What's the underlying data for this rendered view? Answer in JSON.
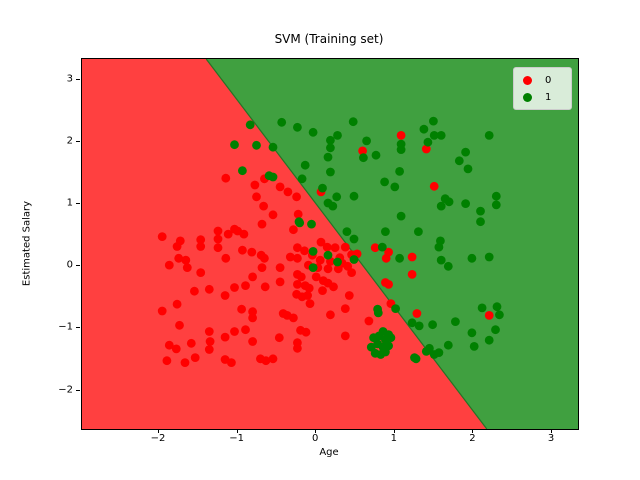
{
  "title": "SVM (Training set)",
  "xlabel": "Age",
  "ylabel": "Estimated Salary",
  "legend": {
    "position": "upper right",
    "items": [
      {
        "label": "0",
        "color": "#ff0000"
      },
      {
        "label": "1",
        "color": "#008000"
      }
    ]
  },
  "chart_data": {
    "type": "scatter",
    "title": "SVM (Training set)",
    "xlabel": "Age",
    "ylabel": "Estimated Salary",
    "xlim": [
      -2.98,
      3.33
    ],
    "ylim": [
      -2.62,
      3.34
    ],
    "x_ticks": [
      -2,
      -1,
      0,
      1,
      2,
      3
    ],
    "y_ticks": [
      3,
      2,
      1,
      0,
      -1,
      -2
    ],
    "grid": false,
    "legend_position": "upper right",
    "regions": [
      {
        "class": "0",
        "side": "lower-left",
        "color": "#ff4040"
      },
      {
        "class": "1",
        "side": "upper-right",
        "color": "#40a040"
      }
    ],
    "decision_boundary": {
      "type": "linear",
      "points_data_coords": [
        [
          -1.4,
          3.34
        ],
        [
          2.17,
          -2.62
        ]
      ],
      "edge_color": "#267326"
    },
    "series": [
      {
        "name": "0",
        "color": "#ff0000",
        "points": [
          [
            -1.96,
            0.48
          ],
          [
            -1.73,
            0.41
          ],
          [
            -1.47,
            0.43
          ],
          [
            -1.25,
            0.57
          ],
          [
            -1.25,
            0.44
          ],
          [
            -1.12,
            0.52
          ],
          [
            -1.04,
            0.6
          ],
          [
            -1.0,
            0.57
          ],
          [
            -0.92,
            0.52
          ],
          [
            -1.15,
            1.42
          ],
          [
            -0.78,
            1.31
          ],
          [
            -0.66,
            1.41
          ],
          [
            -0.46,
            1.28
          ],
          [
            -0.36,
            1.2
          ],
          [
            -0.25,
            1.12
          ],
          [
            -0.76,
            1.12
          ],
          [
            -0.67,
            0.97
          ],
          [
            -0.55,
            0.83
          ],
          [
            -0.23,
            0.84
          ],
          [
            -0.29,
            0.59
          ],
          [
            -0.69,
            0.68
          ],
          [
            0.59,
            1.86
          ],
          [
            1.08,
            2.11
          ],
          [
            1.4,
            1.89
          ],
          [
            1.5,
            1.29
          ],
          [
            0.06,
            1.2
          ],
          [
            -1.77,
            0.32
          ],
          [
            -1.47,
            0.32
          ],
          [
            -1.25,
            0.3
          ],
          [
            -1.87,
            0.02
          ],
          [
            -1.75,
            0.13
          ],
          [
            -1.66,
            0.1
          ],
          [
            -1.64,
            -0.02
          ],
          [
            -1.47,
            -0.1
          ],
          [
            -1.15,
            0.13
          ],
          [
            -0.94,
            0.26
          ],
          [
            -0.9,
            -0.31
          ],
          [
            -1.55,
            -0.4
          ],
          [
            -1.36,
            -0.37
          ],
          [
            -1.16,
            -0.47
          ],
          [
            -1.04,
            -0.34
          ],
          [
            -1.77,
            -0.61
          ],
          [
            -1.96,
            -0.72
          ],
          [
            -1.74,
            -0.95
          ],
          [
            -0.95,
            -0.69
          ],
          [
            -1.36,
            -1.05
          ],
          [
            -1.16,
            -1.14
          ],
          [
            -1.04,
            -1.05
          ],
          [
            -0.9,
            -1.02
          ],
          [
            -1.87,
            -1.27
          ],
          [
            -1.78,
            -1.33
          ],
          [
            -1.59,
            -1.24
          ],
          [
            -1.54,
            -1.47
          ],
          [
            -1.67,
            -1.55
          ],
          [
            -1.35,
            -1.21
          ],
          [
            -1.36,
            -1.34
          ],
          [
            -1.16,
            -1.5
          ],
          [
            -1.08,
            -1.55
          ],
          [
            -1.9,
            -1.52
          ],
          [
            -0.82,
            0.23
          ],
          [
            -0.7,
            0.18
          ],
          [
            -0.66,
            0.13
          ],
          [
            -0.33,
            0.15
          ],
          [
            -0.24,
            0.3
          ],
          [
            -0.24,
            0.13
          ],
          [
            0.14,
            0.31
          ],
          [
            0.24,
            0.3
          ],
          [
            0.37,
            0.31
          ],
          [
            0.45,
            0.19
          ],
          [
            -0.46,
            -0.02
          ],
          [
            -0.69,
            -0.02
          ],
          [
            -0.81,
            -0.17
          ],
          [
            -0.65,
            -0.33
          ],
          [
            -0.46,
            -0.25
          ],
          [
            -0.24,
            -0.13
          ],
          [
            -0.19,
            -0.17
          ],
          [
            -0.24,
            -0.29
          ],
          [
            -0.14,
            -0.31
          ],
          [
            -0.09,
            -0.35
          ],
          [
            -0.25,
            -0.45
          ],
          [
            -0.18,
            -0.49
          ],
          [
            -0.11,
            -0.47
          ],
          [
            0.0,
            -0.17
          ],
          [
            0.09,
            -0.23
          ],
          [
            0.15,
            -0.27
          ],
          [
            0.22,
            -0.33
          ],
          [
            0.08,
            -0.39
          ],
          [
            -0.08,
            -0.6
          ],
          [
            0.42,
            -0.47
          ],
          [
            0.37,
            -0.68
          ],
          [
            0.67,
            -0.88
          ],
          [
            0.18,
            -0.78
          ],
          [
            -0.42,
            -0.76
          ],
          [
            -0.37,
            -0.79
          ],
          [
            -0.29,
            -0.83
          ],
          [
            -0.81,
            -0.73
          ],
          [
            -0.81,
            -0.83
          ],
          [
            -0.47,
            -1.15
          ],
          [
            -0.2,
            -1.03
          ],
          [
            -0.13,
            -1.06
          ],
          [
            0.37,
            -1.12
          ],
          [
            -0.24,
            -1.23
          ],
          [
            -0.24,
            -1.32
          ],
          [
            -0.81,
            -1.21
          ],
          [
            -0.71,
            -1.49
          ],
          [
            -0.64,
            -1.52
          ],
          [
            -0.55,
            -1.49
          ],
          [
            0.75,
            0.3
          ],
          [
            0.89,
            0.13
          ],
          [
            0.92,
            0.23
          ],
          [
            0.88,
            -0.26
          ],
          [
            0.92,
            -0.29
          ],
          [
            0.95,
            -0.6
          ],
          [
            1.22,
            0.15
          ],
          [
            1.22,
            -0.13
          ],
          [
            1.28,
            -0.76
          ],
          [
            2.2,
            -0.79
          ],
          [
            -0.15,
            0.25
          ],
          [
            -0.05,
            0.18
          ],
          [
            0.05,
            0.1
          ],
          [
            0.18,
            0.08
          ],
          [
            0.3,
            0.14
          ],
          [
            -0.1,
            0.02
          ],
          [
            0.02,
            -0.02
          ],
          [
            0.15,
            -0.04
          ],
          [
            0.28,
            -0.04
          ],
          [
            0.33,
            0.05
          ],
          [
            0.4,
            0.0
          ],
          [
            0.45,
            -0.1
          ],
          [
            0.52,
            0.2
          ],
          [
            0.06,
            0.39
          ]
        ]
      },
      {
        "name": "1",
        "color": "#008000",
        "points": [
          [
            -1.04,
            1.96
          ],
          [
            -0.94,
            1.54
          ],
          [
            -0.84,
            2.28
          ],
          [
            -0.44,
            2.32
          ],
          [
            -0.24,
            2.24
          ],
          [
            -0.04,
            2.16
          ],
          [
            0.27,
            2.11
          ],
          [
            0.18,
            2.03
          ],
          [
            0.47,
            2.33
          ],
          [
            0.64,
            2.02
          ],
          [
            -0.76,
            1.95
          ],
          [
            -0.55,
            1.92
          ],
          [
            -0.6,
            1.46
          ],
          [
            -0.55,
            1.44
          ],
          [
            -0.14,
            1.63
          ],
          [
            0.18,
            1.91
          ],
          [
            0.15,
            1.76
          ],
          [
            -0.18,
            1.41
          ],
          [
            0.18,
            1.52
          ],
          [
            0.76,
            1.79
          ],
          [
            0.6,
            1.75
          ],
          [
            1.08,
            1.97
          ],
          [
            1.08,
            1.88
          ],
          [
            1.06,
            1.53
          ],
          [
            0.87,
            1.36
          ],
          [
            1.0,
            1.28
          ],
          [
            0.08,
            1.26
          ],
          [
            0.26,
            1.12
          ],
          [
            0.48,
            1.13
          ],
          [
            0.15,
            1.02
          ],
          [
            0.21,
            0.97
          ],
          [
            -0.22,
            0.72
          ],
          [
            -0.06,
            0.68
          ],
          [
            0.39,
            0.56
          ],
          [
            0.48,
            0.44
          ],
          [
            0.88,
            0.56
          ],
          [
            1.08,
            0.81
          ],
          [
            -0.21,
            0.7
          ],
          [
            1.49,
            2.34
          ],
          [
            1.37,
            2.21
          ],
          [
            1.5,
            2.11
          ],
          [
            1.59,
            2.11
          ],
          [
            1.42,
            2.0
          ],
          [
            2.2,
            2.11
          ],
          [
            1.9,
            1.84
          ],
          [
            1.82,
            1.7
          ],
          [
            1.93,
            1.57
          ],
          [
            1.64,
            1.09
          ],
          [
            1.69,
            1.04
          ],
          [
            1.59,
            0.97
          ],
          [
            1.9,
            1.01
          ],
          [
            2.29,
            1.13
          ],
          [
            2.29,
            0.99
          ],
          [
            2.09,
            0.89
          ],
          [
            2.09,
            0.72
          ],
          [
            1.3,
            0.56
          ],
          [
            1.58,
            0.41
          ],
          [
            -0.04,
            0.24
          ],
          [
            0.15,
            0.18
          ],
          [
            0.27,
            0.07
          ],
          [
            -0.04,
            -0.02
          ],
          [
            0.84,
            0.31
          ],
          [
            1.06,
            0.13
          ],
          [
            0.48,
            0.11
          ],
          [
            1.56,
            0.31
          ],
          [
            1.59,
            0.1
          ],
          [
            1.68,
            0.0
          ],
          [
            1.98,
            0.13
          ],
          [
            2.2,
            0.15
          ],
          [
            0.78,
            -0.69
          ],
          [
            1.01,
            -0.68
          ],
          [
            0.79,
            -0.75
          ],
          [
            1.48,
            -0.94
          ],
          [
            1.77,
            -0.89
          ],
          [
            2.11,
            -0.67
          ],
          [
            2.3,
            -0.65
          ],
          [
            2.33,
            -0.78
          ],
          [
            2.28,
            -1.02
          ],
          [
            2.2,
            -1.19
          ],
          [
            1.98,
            -1.07
          ],
          [
            2.01,
            -1.29
          ],
          [
            1.68,
            -1.27
          ],
          [
            1.4,
            -1.37
          ],
          [
            1.5,
            -1.42
          ],
          [
            1.27,
            -1.49
          ],
          [
            1.22,
            -0.91
          ],
          [
            1.31,
            -0.96
          ],
          [
            1.25,
            -1.47
          ],
          [
            1.44,
            -1.32
          ],
          [
            1.56,
            -1.39
          ],
          [
            0.85,
            -1.05
          ],
          [
            0.92,
            -1.1
          ],
          [
            0.8,
            -1.12
          ],
          [
            0.73,
            -1.15
          ],
          [
            0.88,
            -1.18
          ],
          [
            0.95,
            -1.15
          ],
          [
            0.78,
            -1.25
          ],
          [
            0.7,
            -1.3
          ],
          [
            0.85,
            -1.3
          ],
          [
            0.92,
            -1.28
          ],
          [
            0.75,
            -1.4
          ],
          [
            0.82,
            -1.42
          ],
          [
            0.88,
            -1.38
          ]
        ]
      }
    ]
  }
}
